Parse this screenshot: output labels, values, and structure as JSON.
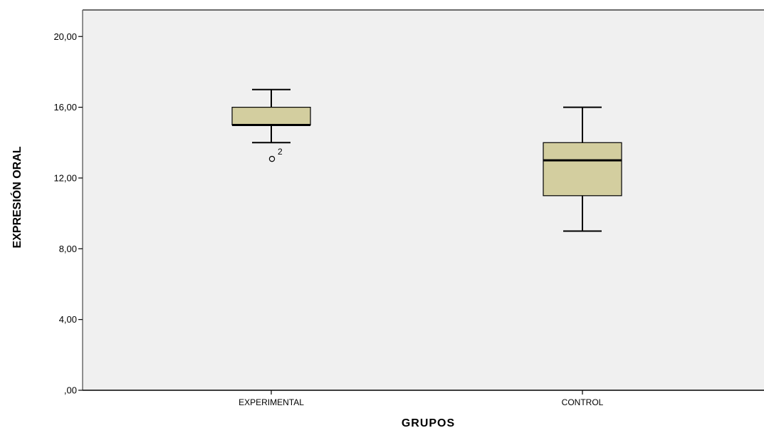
{
  "chart_data": {
    "type": "boxplot",
    "xlabel": "GRUPOS",
    "ylabel": "EXPRESIÓN ORAL",
    "ylim": [
      0,
      21.5
    ],
    "y_ticks": [
      0,
      4,
      8,
      12,
      16,
      20
    ],
    "y_tick_labels": [
      ",00",
      "4,00",
      "8,00",
      "12,00",
      "16,00",
      "20,00"
    ],
    "categories": [
      "EXPERIMENTAL",
      "CONTROL"
    ],
    "boxes": [
      {
        "category": "EXPERIMENTAL",
        "whisker_low": 14,
        "q1": 15,
        "median": 15,
        "q3": 16,
        "whisker_high": 17,
        "outliers": [
          {
            "value": 13,
            "label": "2"
          }
        ]
      },
      {
        "category": "CONTROL",
        "whisker_low": 9,
        "q1": 11,
        "median": 13,
        "q3": 14,
        "whisker_high": 16,
        "outliers": []
      }
    ],
    "grid": false,
    "colors": {
      "plot_background": "#f0f0f0",
      "box_fill": "#d3ce9f",
      "line": "#000000",
      "frame": "#6b6b6b"
    }
  }
}
